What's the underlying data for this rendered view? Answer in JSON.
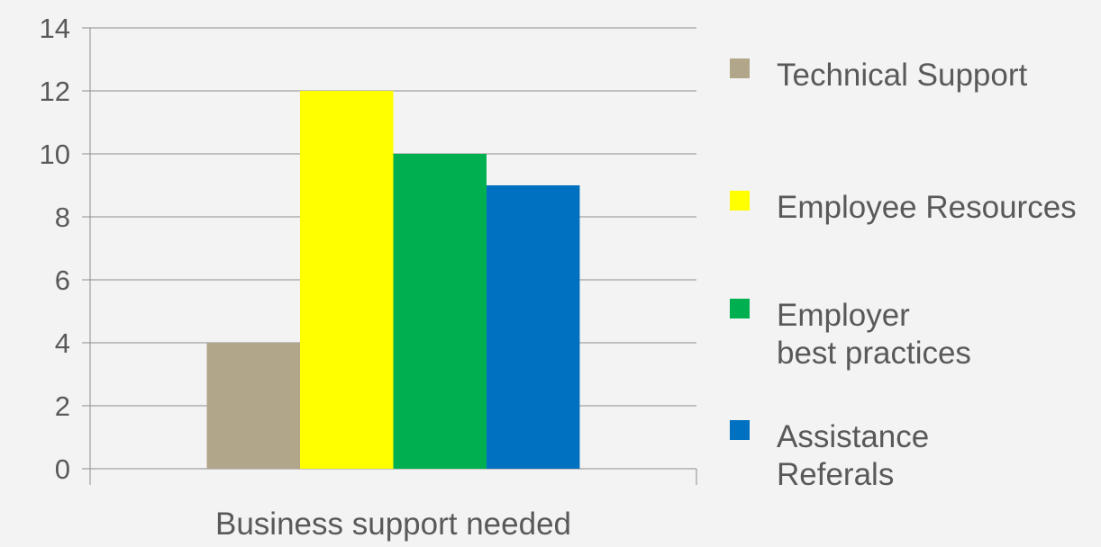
{
  "chart_data": {
    "type": "bar",
    "categories": [
      "Business support needed"
    ],
    "series": [
      {
        "name": "Technical Support",
        "values": [
          4
        ],
        "color": "#b2a68a"
      },
      {
        "name": "Employee Resources",
        "values": [
          12
        ],
        "color": "#ffff00"
      },
      {
        "name": "Employer best practices",
        "values": [
          10
        ],
        "color": "#00b050"
      },
      {
        "name": "Assistance Referals",
        "values": [
          9
        ],
        "color": "#0070c0"
      }
    ],
    "title": "",
    "xlabel": "",
    "ylabel": "",
    "ylim": [
      0,
      14
    ],
    "yticks": [
      0,
      2,
      4,
      6,
      8,
      10,
      12,
      14
    ],
    "grid": true,
    "legend_position": "right"
  }
}
